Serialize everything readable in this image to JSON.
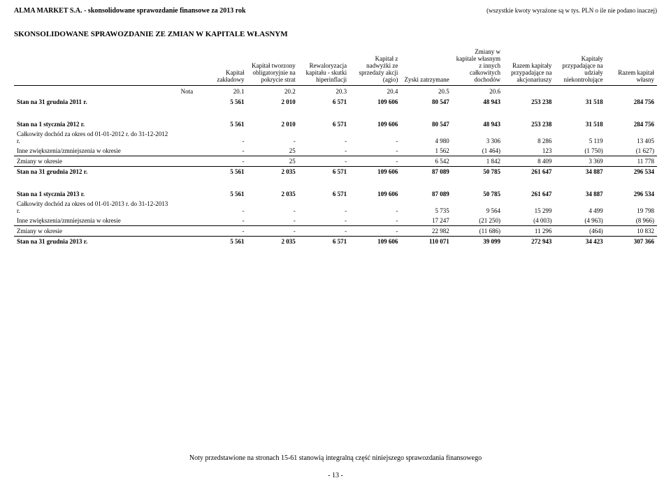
{
  "header": {
    "company_line": "ALMA MARKET S.A. - skonsolidowane sprawozdanie finansowe za 2013 rok",
    "currency_note": "(wszystkie kwoty wyrażone są w tys. PLN o ile nie podano inaczej)"
  },
  "section_title": "SKONSOLIDOWANE SPRAWOZDANIE ZE ZMIAN W KAPITALE WŁASNYM",
  "columns": [
    "Kapitał zakładowy",
    "Kapitał tworzony obligatoryjnie na pokrycie strat",
    "Rewaloryzacja kapitału - skutki hiperinflacji",
    "Kapitał z nadwyżki ze sprzedaży akcji (agio)",
    "Zyski zatrzymane",
    "Zmiany w kapitale własnym z innych całkowitych dochodów",
    "Razem kapitały przypadające na akcjonariuszy",
    "Kapitały przypadające na udziały niekontrolujące",
    "Razem kapitał własny"
  ],
  "nota_label": "Nota",
  "nota_values": [
    "20.1",
    "20.2",
    "20.3",
    "20.4",
    "20.5",
    "20.6",
    "",
    "",
    ""
  ],
  "blocks": [
    {
      "rows": [
        {
          "label": "Stan na 31 grudnia 2011 r.",
          "bold": true,
          "top_border": false,
          "cells": [
            "5 561",
            "2 010",
            "6 571",
            "109 606",
            "80 547",
            "48 943",
            "253 238",
            "31 518",
            "284 756"
          ]
        }
      ]
    },
    {
      "rows": [
        {
          "label": "Stan na 1 stycznia 2012 r.",
          "bold": true,
          "top_border": false,
          "cells": [
            "5 561",
            "2 010",
            "6 571",
            "109 606",
            "80 547",
            "48 943",
            "253 238",
            "31 518",
            "284 756"
          ]
        },
        {
          "label": "Całkowity dochód  za okres od 01-01-2012 r. do 31-12-2012 r.",
          "bold": false,
          "top_border": false,
          "cells": [
            "-",
            "-",
            "-",
            "-",
            "4 980",
            "3 306",
            "8 286",
            "5 119",
            "13 405"
          ]
        },
        {
          "label": "Inne zwiększenia/zmniejszenia w okresie",
          "bold": false,
          "top_border": false,
          "cells": [
            "-",
            "25",
            "-",
            "-",
            "1 562",
            "(1 464)",
            "123",
            "(1 750)",
            "(1 627)"
          ]
        },
        {
          "label": "Zmiany w okresie",
          "bold": false,
          "top_border": true,
          "cells": [
            "-",
            "25",
            "-",
            "-",
            "6 542",
            "1 842",
            "8 409",
            "3 369",
            "11 778"
          ]
        },
        {
          "label": "Stan na 31 grudnia 2012 r.",
          "bold": true,
          "top_border": true,
          "cells": [
            "5 561",
            "2 035",
            "6 571",
            "109 606",
            "87 089",
            "50 785",
            "261 647",
            "34 887",
            "296 534"
          ]
        }
      ]
    },
    {
      "rows": [
        {
          "label": "Stan na 1 stycznia 2013 r.",
          "bold": true,
          "top_border": false,
          "cells": [
            "5 561",
            "2 035",
            "6 571",
            "109 606",
            "87 089",
            "50 785",
            "261 647",
            "34 887",
            "296 534"
          ]
        },
        {
          "label": "Całkowity dochód  za okres od 01-01-2013 r. do 31-12-2013 r.",
          "bold": false,
          "top_border": false,
          "cells": [
            "-",
            "-",
            "-",
            "-",
            "5 735",
            "9 564",
            "15 299",
            "4 499",
            "19 798"
          ]
        },
        {
          "label": "Inne zwiększenia/zmniejszenia w okresie",
          "bold": false,
          "top_border": false,
          "cells": [
            "-",
            "-",
            "-",
            "-",
            "17 247",
            "(21 250)",
            "(4 003)",
            "(4 963)",
            "(8 966)"
          ]
        },
        {
          "label": "Zmiany w okresie",
          "bold": false,
          "top_border": true,
          "cells": [
            "-",
            "-",
            "-",
            "-",
            "22 982",
            "(11 686)",
            "11 296",
            "(464)",
            "10 832"
          ]
        },
        {
          "label": "Stan na 31 grudnia 2013 r.",
          "bold": true,
          "top_border": true,
          "cells": [
            "5 561",
            "2 035",
            "6 571",
            "109 606",
            "110 071",
            "39 099",
            "272 943",
            "34 423",
            "307 366"
          ]
        }
      ]
    }
  ],
  "footer": {
    "note_line": "Noty przedstawione na stronach 15-61 stanowią integralną część niniejszego sprawozdania finansowego",
    "page": "- 13 -"
  }
}
